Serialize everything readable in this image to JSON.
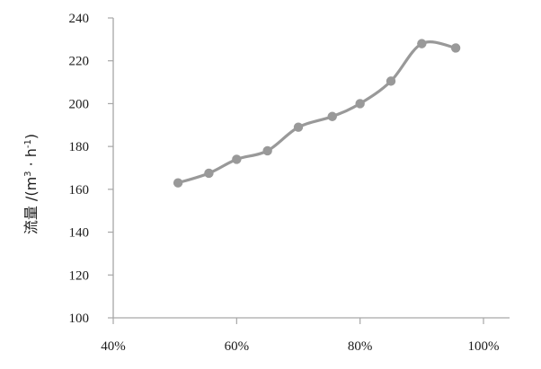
{
  "chart_data": {
    "type": "line",
    "title": "",
    "xlabel": "",
    "ylabel": "流量 /(m³ · h⁻¹)",
    "ylabel_parts": {
      "prefix": "流量 /(m",
      "sup1": "3",
      "middle": " · h",
      "sup2": "-1",
      "suffix": ")"
    },
    "xlim": [
      40,
      100
    ],
    "ylim": [
      100,
      240
    ],
    "x_ticks": [
      40,
      60,
      80,
      100
    ],
    "x_tick_labels": [
      "40%",
      "60%",
      "80%",
      "100%"
    ],
    "y_ticks": [
      100,
      120,
      140,
      160,
      180,
      200,
      220,
      240
    ],
    "y_tick_labels": [
      "100",
      "120",
      "140",
      "160",
      "180",
      "200",
      "220",
      "240"
    ],
    "grid": false,
    "legend": "none",
    "color": "#999999",
    "series": [
      {
        "x": [
          50.5,
          55.5,
          60,
          65,
          70,
          75.5,
          80,
          85,
          90,
          95.5
        ],
        "y": [
          163,
          167.5,
          174,
          178,
          189,
          194,
          200,
          210.5,
          228,
          226
        ]
      }
    ]
  }
}
